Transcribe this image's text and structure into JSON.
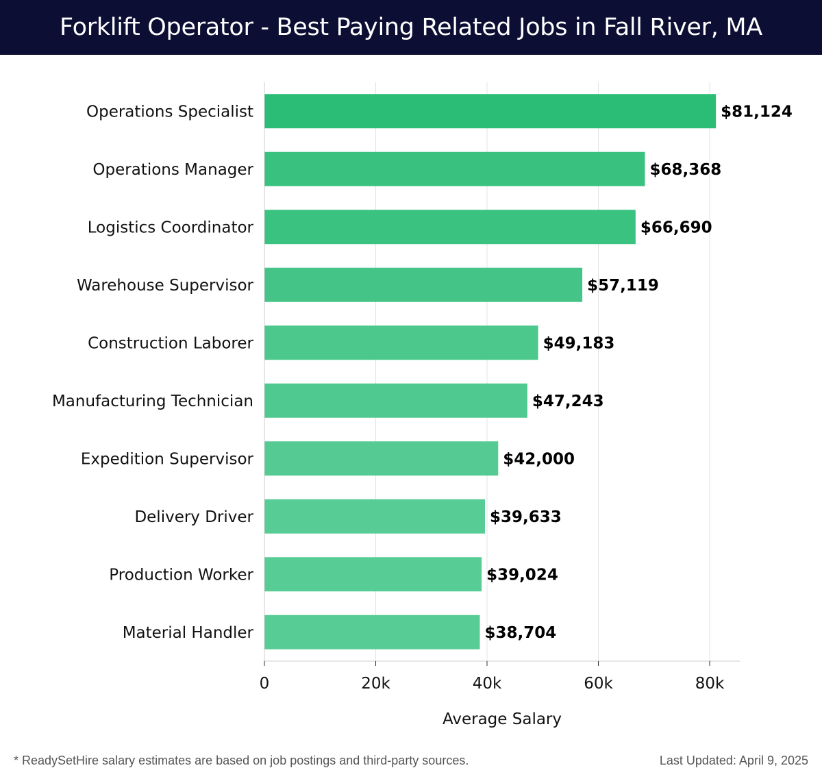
{
  "header": {
    "title": "Forklift Operator - Best Paying Related Jobs in Fall River, MA"
  },
  "chart_data": {
    "type": "bar",
    "orientation": "horizontal",
    "title": "Forklift Operator - Best Paying Related Jobs in Fall River, MA",
    "xlabel": "Average Salary",
    "ylabel": "",
    "xlim": [
      0,
      85000
    ],
    "xticks": [
      0,
      20000,
      40000,
      60000,
      80000
    ],
    "xtick_labels": [
      "0",
      "20k",
      "40k",
      "60k",
      "80k"
    ],
    "grid": "vertical",
    "categories": [
      "Operations Specialist",
      "Operations Manager",
      "Logistics Coordinator",
      "Warehouse Supervisor",
      "Construction Laborer",
      "Manufacturing Technician",
      "Expedition Supervisor",
      "Delivery Driver",
      "Production Worker",
      "Material Handler"
    ],
    "values": [
      81124,
      68368,
      66690,
      57119,
      49183,
      47243,
      42000,
      39633,
      39024,
      38704
    ],
    "value_labels": [
      "$81,124",
      "$68,368",
      "$66,690",
      "$57,119",
      "$49,183",
      "$47,243",
      "$42,000",
      "$39,633",
      "$39,024",
      "$38,704"
    ],
    "colors": {
      "bar_dark": "#2bbd75",
      "bar_light": "#58cc95",
      "grid": "#e3e3e3",
      "axis": "#cccccc",
      "text": "#111111"
    }
  },
  "footer": {
    "note": "* ReadySetHire salary estimates are based on job postings and third-party sources.",
    "updated": "Last Updated: April 9, 2025"
  }
}
